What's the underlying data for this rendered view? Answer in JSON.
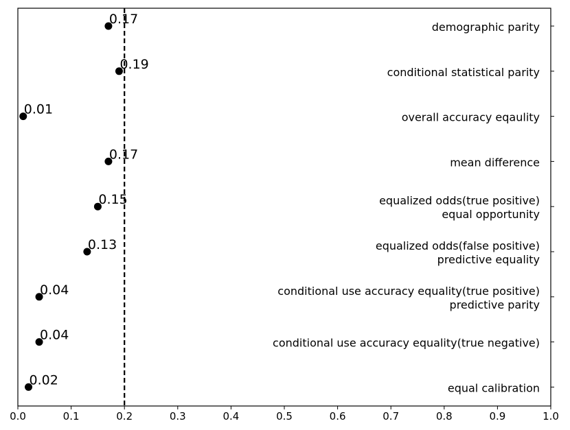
{
  "chart_data": {
    "type": "scatter",
    "title": "",
    "xlabel": "",
    "ylabel": "",
    "xlim": [
      0.0,
      1.0
    ],
    "x_ticks": [
      "0.0",
      "0.1",
      "0.2",
      "0.3",
      "0.4",
      "0.5",
      "0.6",
      "0.7",
      "0.8",
      "0.9",
      "1.0"
    ],
    "x_tick_values": [
      0.0,
      0.1,
      0.2,
      0.3,
      0.4,
      0.5,
      0.6,
      0.7,
      0.8,
      0.9,
      1.0
    ],
    "threshold": 0.2,
    "threshold_style": "dashed vertical line",
    "grid": false,
    "legend": "none",
    "point_color": "#000000",
    "points": [
      {
        "lines": [
          "demographic parity"
        ],
        "value": 0.17,
        "label": "0.17"
      },
      {
        "lines": [
          "conditional statistical parity"
        ],
        "value": 0.19,
        "label": "0.19"
      },
      {
        "lines": [
          "overall accuracy eqaulity"
        ],
        "value": 0.01,
        "label": "0.01"
      },
      {
        "lines": [
          "mean difference"
        ],
        "value": 0.17,
        "label": "0.17"
      },
      {
        "lines": [
          "equalized odds(true positive)",
          "equal opportunity"
        ],
        "value": 0.15,
        "label": "0.15"
      },
      {
        "lines": [
          "equalized odds(false positive)",
          "predictive equality"
        ],
        "value": 0.13,
        "label": "0.13"
      },
      {
        "lines": [
          "conditional use accuracy equality(true positive)",
          "predictive parity"
        ],
        "value": 0.04,
        "label": "0.04"
      },
      {
        "lines": [
          "conditional use accuracy equality(true negative)"
        ],
        "value": 0.04,
        "label": "0.04"
      },
      {
        "lines": [
          "equal calibration"
        ],
        "value": 0.02,
        "label": "0.02"
      }
    ]
  }
}
